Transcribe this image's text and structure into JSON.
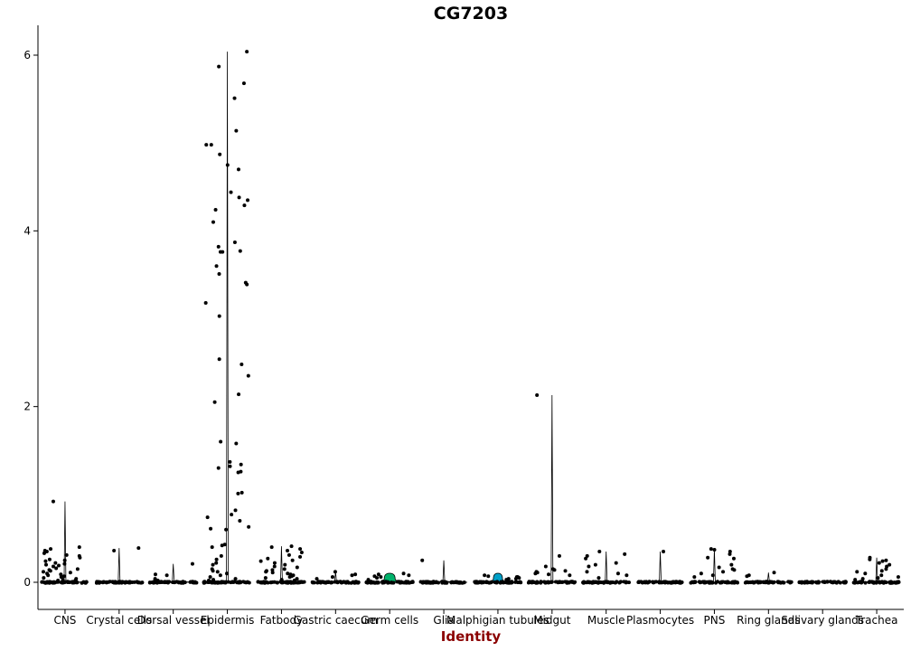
{
  "chart_data": {
    "type": "violin",
    "title": "CG7203",
    "xlabel": "Identity",
    "ylabel": "",
    "ylim": [
      -0.3,
      6.35
    ],
    "yticks": [
      0,
      2,
      4,
      6
    ],
    "grid": false,
    "legend": "none",
    "colors": {
      "xlabel": "#8b0000",
      "points": "#000000",
      "violin_outline": "#000000",
      "germ_cells_fill": "#00b26b",
      "malpighian_fill": "#00a0c8"
    },
    "categories": [
      "CNS",
      "Crystal cells",
      "Dorsal vessel",
      "Epidermis",
      "Fatbody",
      "Gastric caecum",
      "Germ cells",
      "Glia",
      "Malphigian tubules",
      "Midgut",
      "Muscle",
      "Plasmocytes",
      "PNS",
      "Ring glands",
      "Salivary glands",
      "Trachea"
    ],
    "series": [
      {
        "category": "CNS",
        "max": 0.92,
        "values": [
          0.92,
          0.4,
          0.38,
          0.36,
          0.35,
          0.33,
          0.31,
          0.3,
          0.28,
          0.26,
          0.25,
          0.24,
          0.22,
          0.21,
          0.2,
          0.19,
          0.18,
          0.16,
          0.15,
          0.14,
          0.13,
          0.12,
          0.11,
          0.1,
          0.09,
          0.08,
          0.07,
          0.06,
          0.05,
          0.04,
          0.03,
          0.02,
          0.02
        ]
      },
      {
        "category": "Crystal cells",
        "max": 0.39,
        "values": [
          0.39,
          0.36
        ]
      },
      {
        "category": "Dorsal vessel",
        "max": 0.21,
        "values": [
          0.21,
          0.09,
          0.08,
          0.04,
          0.02
        ]
      },
      {
        "category": "Epidermis",
        "max": 6.04,
        "values": [
          6.04,
          5.87,
          5.68,
          5.51,
          5.14,
          4.98,
          4.98,
          4.87,
          4.75,
          4.7,
          4.44,
          4.38,
          4.35,
          4.29,
          4.24,
          4.1,
          3.87,
          3.82,
          3.77,
          3.76,
          3.76,
          3.6,
          3.51,
          3.41,
          3.39,
          3.18,
          3.03,
          2.54,
          2.48,
          2.35,
          2.14,
          2.05,
          1.6,
          1.58,
          1.37,
          1.34,
          1.32,
          1.3,
          1.26,
          1.25,
          1.02,
          1.01,
          0.82,
          0.77,
          0.74,
          0.7,
          0.63,
          0.61,
          0.6,
          0.43,
          0.42,
          0.4,
          0.3,
          0.26,
          0.22,
          0.2,
          0.15,
          0.13,
          0.12,
          0.1,
          0.08,
          0.06,
          0.04,
          0.03,
          0.02
        ]
      },
      {
        "category": "Fatbody",
        "max": 0.41,
        "values": [
          0.41,
          0.4,
          0.38,
          0.36,
          0.34,
          0.31,
          0.29,
          0.27,
          0.25,
          0.24,
          0.22,
          0.2,
          0.18,
          0.17,
          0.15,
          0.14,
          0.13,
          0.12,
          0.11,
          0.1,
          0.09,
          0.08,
          0.07,
          0.06,
          0.05,
          0.04,
          0.03,
          0.02
        ]
      },
      {
        "category": "Gastric caecum",
        "max": 0.12,
        "values": [
          0.12,
          0.09,
          0.08,
          0.06,
          0.04
        ]
      },
      {
        "category": "Germ cells",
        "max": 0.1,
        "values": [
          0.1,
          0.09,
          0.08,
          0.07,
          0.06,
          0.05,
          0.03
        ]
      },
      {
        "category": "Glia",
        "max": 0.25,
        "values": [
          0.25
        ]
      },
      {
        "category": "Malphigian tubules",
        "max": 0.08,
        "values": [
          0.08,
          0.07,
          0.06,
          0.06,
          0.05,
          0.04,
          0.04,
          0.03
        ]
      },
      {
        "category": "Midgut",
        "max": 2.13,
        "values": [
          2.13,
          0.3,
          0.18,
          0.15,
          0.14,
          0.13,
          0.12,
          0.11,
          0.1,
          0.09,
          0.08
        ]
      },
      {
        "category": "Muscle",
        "max": 0.35,
        "values": [
          0.35,
          0.32,
          0.3,
          0.27,
          0.22,
          0.2,
          0.18,
          0.12,
          0.1,
          0.08,
          0.05
        ]
      },
      {
        "category": "Plasmocytes",
        "max": 0.35,
        "values": [
          0.35
        ]
      },
      {
        "category": "PNS",
        "max": 0.38,
        "values": [
          0.38,
          0.37,
          0.35,
          0.32,
          0.28,
          0.27,
          0.2,
          0.17,
          0.15,
          0.14,
          0.12,
          0.1,
          0.08,
          0.06
        ]
      },
      {
        "category": "Ring glands",
        "max": 0.11,
        "values": [
          0.11,
          0.08,
          0.07
        ]
      },
      {
        "category": "Salivary glands",
        "max": 0.0,
        "values": []
      },
      {
        "category": "Trachea",
        "max": 0.28,
        "values": [
          0.28,
          0.26,
          0.25,
          0.24,
          0.22,
          0.2,
          0.18,
          0.15,
          0.13,
          0.12,
          0.1,
          0.08,
          0.06,
          0.05,
          0.04,
          0.03
        ]
      }
    ]
  }
}
